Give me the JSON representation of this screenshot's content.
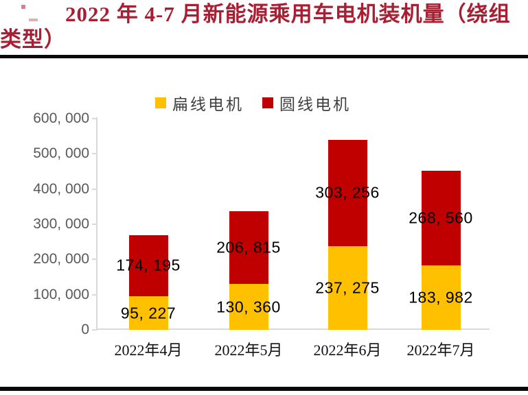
{
  "title": {
    "text": "2022 年 4-7 月新能源乘用车电机装机量（绕组类型）"
  },
  "legend": {
    "items": [
      {
        "label": "扁线电机",
        "color": "#FFC000"
      },
      {
        "label": "圆线电机",
        "color": "#C00000"
      }
    ]
  },
  "colors": {
    "flat_wire_yellow": "#FFC000",
    "round_wire_red": "#C00000",
    "title_red": "#A81E32",
    "axis_gray": "#D9D9D9",
    "ytick_gray": "#595959"
  },
  "chart_data": {
    "type": "bar",
    "stacked": true,
    "title": "2022 年 4-7 月新能源乘用车电机装机量（绕组类型）",
    "categories": [
      "2022年4月",
      "2022年5月",
      "2022年6月",
      "2022年7月"
    ],
    "series": [
      {
        "name": "扁线电机",
        "color": "#FFC000",
        "values": [
          95227,
          130360,
          237275,
          183982
        ],
        "labels": [
          "95, 227",
          "130, 360",
          "237, 275",
          "183, 982"
        ]
      },
      {
        "name": "圆线电机",
        "color": "#C00000",
        "values": [
          174195,
          206815,
          303256,
          268560
        ],
        "labels": [
          "174, 195",
          "206, 815",
          "303, 256",
          "268, 560"
        ]
      }
    ],
    "xlabel": "",
    "ylabel": "",
    "ylim": [
      0,
      600000
    ],
    "ytick_step": 100000,
    "ytick_labels": [
      "0",
      "100, 000",
      "200, 000",
      "300, 000",
      "400, 000",
      "500, 000",
      "600, 000"
    ],
    "legend_position": "top-center",
    "grid": false,
    "data_labels": "inside-segment-center"
  }
}
